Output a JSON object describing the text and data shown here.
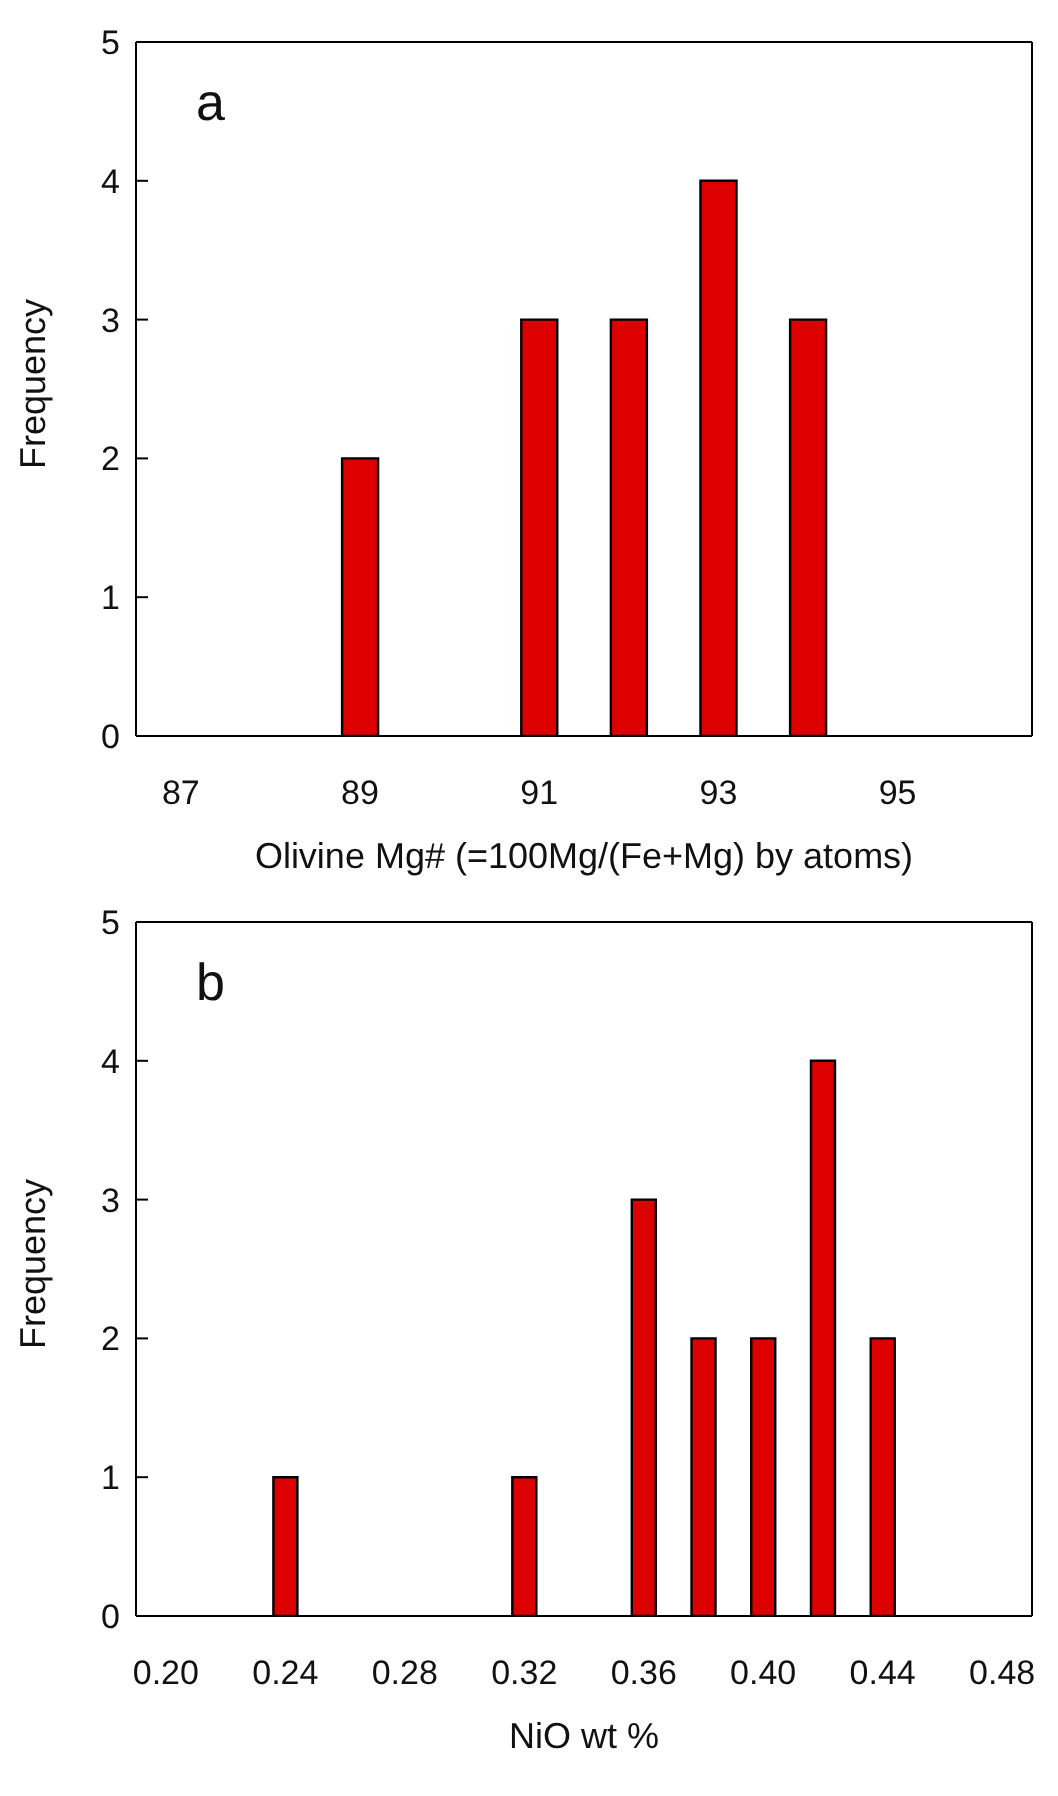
{
  "chart_data": [
    {
      "type": "bar",
      "title": "a",
      "xlabel": "Olivine  Mg# (=100Mg/(Fe+Mg)  by atoms)",
      "ylabel": "Frequency",
      "categories": [
        "87",
        null,
        "89",
        null,
        "91",
        null,
        "93",
        null,
        "95",
        null
      ],
      "values": [
        0,
        0,
        2,
        0,
        3,
        3,
        4,
        3,
        0,
        0
      ],
      "color": "#dd0000",
      "ylim": [
        0,
        5
      ],
      "yticks": [
        0,
        1,
        2,
        3,
        4,
        5
      ],
      "grid": false,
      "legend": false
    },
    {
      "type": "bar",
      "title": "b",
      "xlabel": "NiO wt %",
      "ylabel": "Frequency",
      "categories": [
        "0.20",
        null,
        "0.24",
        null,
        "0.28",
        null,
        "0.32",
        null,
        "0.36",
        null,
        "0.40",
        null,
        "0.44",
        null,
        "0.48"
      ],
      "values": [
        0,
        0,
        1,
        0,
        0,
        0,
        1,
        0,
        3,
        2,
        2,
        4,
        2,
        0,
        0
      ],
      "color": "#dd0000",
      "ylim": [
        0,
        5
      ],
      "yticks": [
        0,
        1,
        2,
        3,
        4,
        5
      ],
      "grid": false,
      "legend": false
    }
  ]
}
